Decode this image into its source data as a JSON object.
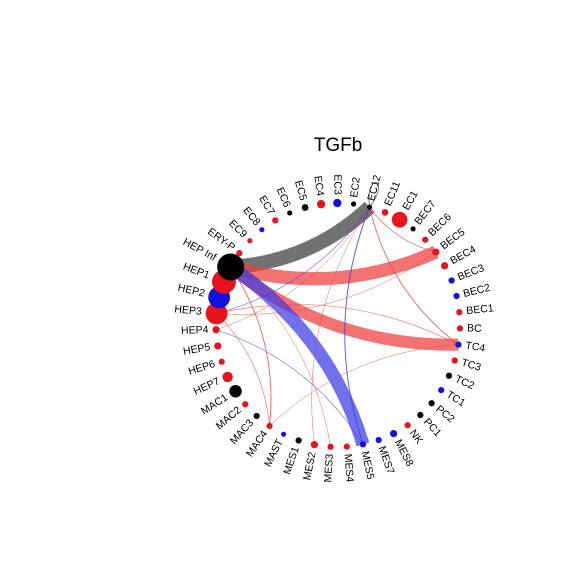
{
  "title": "TGFb",
  "colors": {
    "red": "#e8141b",
    "blue": "#1010e0",
    "black": "#000000",
    "edge_red": "#ef3b3b",
    "edge_blue": "#3a3ae6",
    "edge_black": "#3c3c3c"
  },
  "nodes": [
    {
      "id": "EC12",
      "label": "EC12",
      "color": "black",
      "size": 1.0
    },
    {
      "id": "EC11",
      "label": "EC11",
      "color": "red",
      "size": 1.3
    },
    {
      "id": "EC1",
      "label": "EC1",
      "color": "red",
      "size": 3.0
    },
    {
      "id": "BEC7",
      "label": "BEC7",
      "color": "black",
      "size": 1.0
    },
    {
      "id": "BEC6",
      "label": "BEC6",
      "color": "red",
      "size": 1.2
    },
    {
      "id": "BEC5",
      "label": "BEC5",
      "color": "red",
      "size": 1.4
    },
    {
      "id": "BEC4",
      "label": "BEC4",
      "color": "red",
      "size": 1.4
    },
    {
      "id": "BEC3",
      "label": "BEC3",
      "color": "blue",
      "size": 1.2
    },
    {
      "id": "BEC2",
      "label": "BEC2",
      "color": "blue",
      "size": 1.2
    },
    {
      "id": "BEC1",
      "label": "BEC1",
      "color": "red",
      "size": 1.2
    },
    {
      "id": "BC",
      "label": "BC",
      "color": "red",
      "size": 1.2
    },
    {
      "id": "TC4",
      "label": "TC4",
      "color": "blue",
      "size": 1.2
    },
    {
      "id": "TC3",
      "label": "TC3",
      "color": "red",
      "size": 1.2
    },
    {
      "id": "TC2",
      "label": "TC2",
      "color": "black",
      "size": 1.2
    },
    {
      "id": "TC1",
      "label": "TC1",
      "color": "blue",
      "size": 1.2
    },
    {
      "id": "PC2",
      "label": "PC2",
      "color": "black",
      "size": 1.2
    },
    {
      "id": "PC1",
      "label": "PC1",
      "color": "black",
      "size": 1.2
    },
    {
      "id": "NK",
      "label": "NK",
      "color": "red",
      "size": 1.2
    },
    {
      "id": "MES8",
      "label": "MES8",
      "color": "blue",
      "size": 1.4
    },
    {
      "id": "MES7",
      "label": "MES7",
      "color": "blue",
      "size": 1.2
    },
    {
      "id": "MES5",
      "label": "MES5",
      "color": "blue",
      "size": 1.2
    },
    {
      "id": "MES4",
      "label": "MES4",
      "color": "red",
      "size": 1.2
    },
    {
      "id": "MES3",
      "label": "MES3",
      "color": "red",
      "size": 1.2
    },
    {
      "id": "MES2",
      "label": "MES2",
      "color": "red",
      "size": 1.4
    },
    {
      "id": "MES1",
      "label": "MES1",
      "color": "black",
      "size": 1.2
    },
    {
      "id": "MAST",
      "label": "MAST",
      "color": "blue",
      "size": 1.0
    },
    {
      "id": "MAC4",
      "label": "MAC4",
      "color": "red",
      "size": 1.2
    },
    {
      "id": "MAC3",
      "label": "MAC3",
      "color": "black",
      "size": 1.2
    },
    {
      "id": "MAC2",
      "label": "MAC2",
      "color": "red",
      "size": 1.2
    },
    {
      "id": "MAC1",
      "label": "MAC1",
      "color": "black",
      "size": 2.4
    },
    {
      "id": "HEP7",
      "label": "HEP7",
      "color": "red",
      "size": 2.0
    },
    {
      "id": "HEP6",
      "label": "HEP6",
      "color": "red",
      "size": 1.2
    },
    {
      "id": "HEP5",
      "label": "HEP5",
      "color": "red",
      "size": 1.4
    },
    {
      "id": "HEP4",
      "label": "HEP4",
      "color": "red",
      "size": 1.4
    },
    {
      "id": "HEP3",
      "label": "HEP3",
      "color": "red",
      "size": 4.2
    },
    {
      "id": "HEP2",
      "label": "HEP2",
      "color": "blue",
      "size": 4.2
    },
    {
      "id": "HEP1",
      "label": "HEP1",
      "color": "red",
      "size": 4.6
    },
    {
      "id": "HEP Inf",
      "label": "HEP Inf",
      "color": "black",
      "size": 5.2
    },
    {
      "id": "ERY-P",
      "label": "ERY-P",
      "color": "red",
      "size": 1.2
    },
    {
      "id": "EC9",
      "label": "EC9",
      "color": "red",
      "size": 1.0
    },
    {
      "id": "EC8",
      "label": "EC8",
      "color": "blue",
      "size": 1.0
    },
    {
      "id": "EC7",
      "label": "EC7",
      "color": "red",
      "size": 1.2
    },
    {
      "id": "EC6",
      "label": "EC6",
      "color": "black",
      "size": 1.0
    },
    {
      "id": "EC5",
      "label": "EC5",
      "color": "black",
      "size": 1.3
    },
    {
      "id": "EC4",
      "label": "EC4",
      "color": "red",
      "size": 1.6
    },
    {
      "id": "EC3",
      "label": "EC3",
      "color": "blue",
      "size": 1.6
    },
    {
      "id": "EC2",
      "label": "EC2",
      "color": "black",
      "size": 1.0
    }
  ],
  "edges": [
    {
      "from": "EC12",
      "to": "HEP Inf",
      "color": "black",
      "weight": 6.5
    },
    {
      "from": "BEC5",
      "to": "HEP Inf",
      "color": "red",
      "weight": 6.0
    },
    {
      "from": "TC4",
      "to": "HEP Inf",
      "color": "red",
      "weight": 5.5
    },
    {
      "from": "MES5",
      "to": "HEP Inf",
      "color": "blue",
      "weight": 6.0
    },
    {
      "from": "EC12",
      "to": "EC12",
      "color": "black",
      "weight": 0.8,
      "self": true
    },
    {
      "from": "EC12",
      "to": "MES5",
      "color": "blue",
      "weight": 1.0
    },
    {
      "from": "EC12",
      "to": "TC4",
      "color": "red",
      "weight": 0.9
    },
    {
      "from": "EC12",
      "to": "BEC5",
      "color": "red",
      "weight": 0.7
    },
    {
      "from": "EC12",
      "to": "HEP3",
      "color": "blue",
      "weight": 0.6
    },
    {
      "from": "EC12",
      "to": "MES2",
      "color": "red",
      "weight": 0.5
    },
    {
      "from": "EC12",
      "to": "HEP4",
      "color": "red",
      "weight": 0.5
    },
    {
      "from": "BEC5",
      "to": "HEP3",
      "color": "red",
      "weight": 0.5
    },
    {
      "from": "TC4",
      "to": "HEP3",
      "color": "red",
      "weight": 0.6
    },
    {
      "from": "MES5",
      "to": "HEP4",
      "color": "blue",
      "weight": 0.6
    },
    {
      "from": "HEP Inf",
      "to": "MAC4",
      "color": "red",
      "weight": 0.9
    },
    {
      "from": "MAC4",
      "to": "HEP3",
      "color": "red",
      "weight": 0.6
    },
    {
      "from": "TC4",
      "to": "MAC4",
      "color": "red",
      "weight": 0.5
    },
    {
      "from": "HEP Inf",
      "to": "MES3",
      "color": "red",
      "weight": 0.5
    }
  ]
}
